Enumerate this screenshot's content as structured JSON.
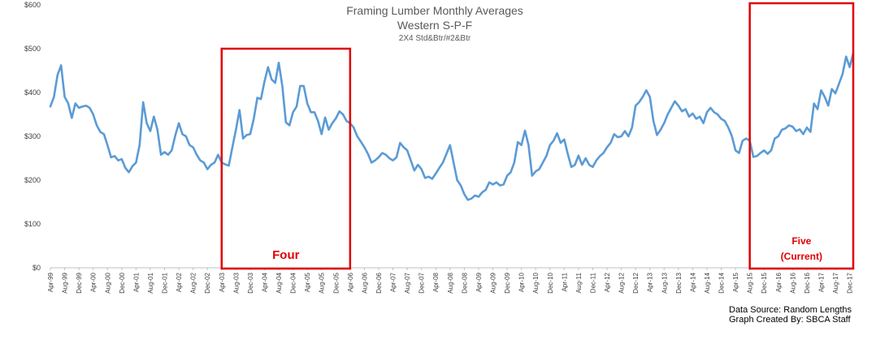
{
  "chart_data": {
    "type": "line",
    "title": "Framing Lumber Monthly Averages",
    "subtitle": "Western S-P-F",
    "subtitle2": "2X4 Std&Btr/#2&Btr",
    "ylim": [
      0,
      600
    ],
    "yticks": [
      "$0",
      "$100",
      "$200",
      "$300",
      "$400",
      "$500",
      "$600"
    ],
    "x_tick_labels": [
      "Apr-99",
      "Aug-99",
      "Dec-99",
      "Apr-00",
      "Aug-00",
      "Dec-00",
      "Apr-01",
      "Aug-01",
      "Dec-01",
      "Apr-02",
      "Aug-02",
      "Dec-02",
      "Apr-03",
      "Aug-03",
      "Dec-03",
      "Apr-04",
      "Aug-04",
      "Dec-04",
      "Apr-05",
      "Aug-05",
      "Dec-05",
      "Apr-06",
      "Aug-06",
      "Dec-06",
      "Apr-07",
      "Aug-07",
      "Dec-07",
      "Apr-08",
      "Aug-08",
      "Dec-08",
      "Apr-09",
      "Aug-09",
      "Dec-09",
      "Apr-10",
      "Aug-10",
      "Dec-10",
      "Apr-11",
      "Aug-11",
      "Dec-11",
      "Apr-12",
      "Aug-12",
      "Dec-12",
      "Apr-13",
      "Aug-13",
      "Dec-13",
      "Apr-14",
      "Aug-14",
      "Dec-14",
      "Apr-15",
      "Aug-15",
      "Dec-15",
      "Apr-16",
      "Aug-16",
      "Dec-16",
      "Apr-17",
      "Aug-17",
      "Dec-17"
    ],
    "line_color": "#5B9BD5",
    "series": [
      {
        "start_month": "Apr-99",
        "values": [
          368,
          390,
          440,
          462,
          390,
          375,
          342,
          375,
          365,
          368,
          370,
          365,
          350,
          325,
          310,
          305,
          280,
          252,
          255,
          245,
          248,
          228,
          218,
          232,
          240,
          280,
          378,
          330,
          312,
          345,
          315,
          258,
          264,
          258,
          268,
          302,
          330,
          305,
          300,
          280,
          275,
          258,
          245,
          240,
          225,
          235,
          240,
          258,
          240,
          236,
          233,
          275,
          315,
          360,
          295,
          303,
          305,
          340,
          388,
          385,
          425,
          458,
          430,
          422,
          468,
          415,
          332,
          325,
          355,
          368,
          415,
          415,
          375,
          355,
          355,
          335,
          305,
          343,
          315,
          330,
          341,
          357,
          350,
          335,
          330,
          320,
          300,
          288,
          275,
          260,
          240,
          245,
          252,
          262,
          258,
          250,
          245,
          252,
          285,
          275,
          268,
          245,
          222,
          235,
          225,
          205,
          208,
          203,
          215,
          228,
          240,
          260,
          280,
          240,
          200,
          188,
          168,
          155,
          158,
          165,
          162,
          172,
          178,
          195,
          190,
          195,
          188,
          190,
          210,
          218,
          240,
          287,
          280,
          313,
          280,
          210,
          220,
          225,
          240,
          255,
          280,
          290,
          307,
          285,
          293,
          260,
          230,
          235,
          256,
          235,
          250,
          235,
          230,
          245,
          255,
          262,
          275,
          285,
          305,
          298,
          300,
          312,
          300,
          320,
          370,
          378,
          390,
          405,
          390,
          335,
          303,
          315,
          330,
          350,
          365,
          380,
          370,
          357,
          362,
          345,
          352,
          340,
          345,
          330,
          355,
          365,
          355,
          350,
          340,
          335,
          320,
          300,
          268,
          262,
          290,
          295,
          290,
          253,
          255,
          262,
          268,
          260,
          268,
          295,
          300,
          315,
          318,
          325,
          322,
          312,
          316,
          305,
          320,
          310,
          375,
          362,
          405,
          390,
          370,
          408,
          398,
          420,
          442,
          482,
          458,
          490
        ]
      }
    ],
    "annotations": [
      {
        "label": "Four",
        "x_start": "Apr-03",
        "x_end": "Apr-06",
        "color": "#E00000"
      },
      {
        "label": "Five",
        "label2": "(Current)",
        "x_start": "Aug-15",
        "x_end": "Jan-18",
        "color": "#E00000"
      }
    ],
    "source_lines": [
      "Data Source: Random Lengths",
      "Graph Created By: SBCA Staff"
    ]
  }
}
